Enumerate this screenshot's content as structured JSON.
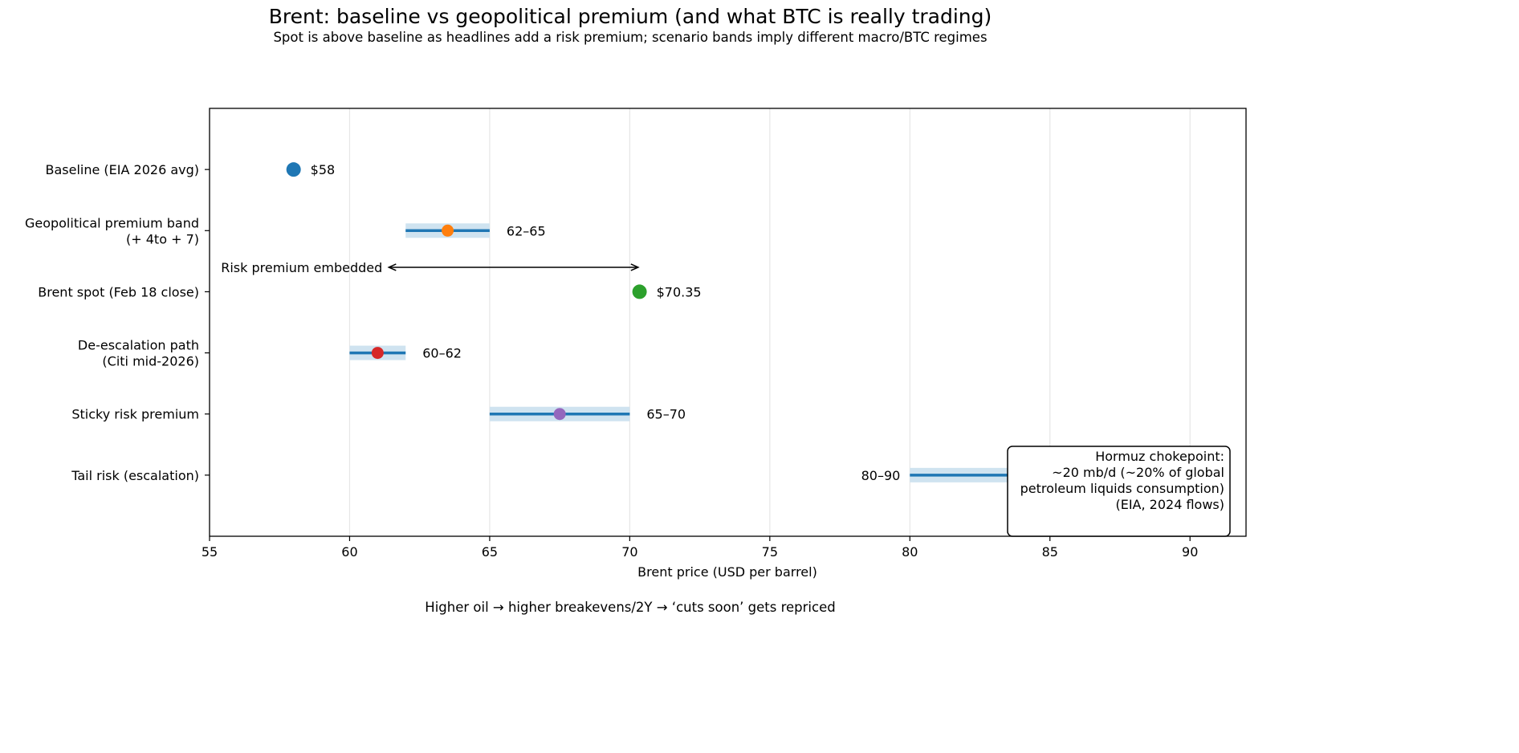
{
  "chart_data": {
    "type": "range-dot",
    "title": "Brent: baseline vs geopolitical premium (and what BTC is really trading)",
    "subtitle": "Spot is above baseline as headlines add a risk premium; scenario bands imply different macro/BTC regimes",
    "xlabel": "Brent price (USD per barrel)",
    "footnote": "Higher oil → higher breakevens/2Y → ‘cuts soon’ gets repriced",
    "xlim": [
      55,
      92
    ],
    "xticks": [
      55,
      60,
      65,
      70,
      75,
      80,
      85,
      90
    ],
    "grid": "vertical",
    "rows": [
      {
        "label": [
          "Baseline (EIA 2026 avg)"
        ],
        "value": 58,
        "band": null,
        "value_label": "$58",
        "color": "#1f77b4"
      },
      {
        "label": [
          "Geopolitical premium band",
          "(+ 4to + 7)"
        ],
        "value": 63.5,
        "band": [
          62,
          65
        ],
        "value_label": "62–65",
        "color": "#ff7f0e"
      },
      {
        "label": [
          "Brent spot (Feb 18 close)"
        ],
        "value": 70.35,
        "band": null,
        "value_label": "$70.35",
        "color": "#2ca02c"
      },
      {
        "label": [
          "De-escalation path",
          "(Citi mid-2026)"
        ],
        "value": 61,
        "band": [
          60,
          62
        ],
        "value_label": "60–62",
        "color": "#d62728"
      },
      {
        "label": [
          "Sticky risk premium"
        ],
        "value": 67.5,
        "band": [
          65,
          70
        ],
        "value_label": "65–70",
        "color": "#9467bd"
      },
      {
        "label": [
          "Tail risk (escalation)"
        ],
        "value": 85,
        "band": [
          80,
          90
        ],
        "value_label": "80–90",
        "color": "#8c564b"
      }
    ],
    "band_line_color": "#1f77b4",
    "band_fill_color": "#cfe3f0",
    "arrow_annotation": {
      "text": "Risk premium embedded",
      "from": 61.4,
      "to": 70.3
    },
    "callout": {
      "lines": [
        "Hormuz chokepoint:",
        "~20 mb/d (~20% of global",
        "petroleum liquids consumption)",
        "(EIA, 2024 flows)"
      ],
      "position": "bottom-right"
    }
  }
}
